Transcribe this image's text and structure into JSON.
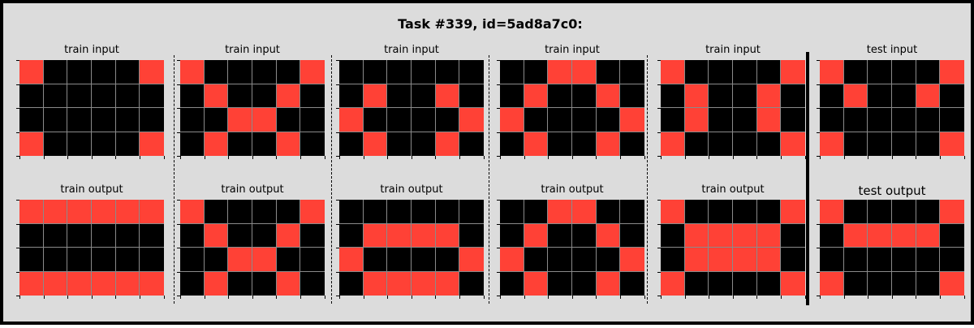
{
  "title": "Task #339, id=5ad8a7c0:",
  "colors": {
    "black": "#000000",
    "red": "#ff4136",
    "gridline": "#8a8a8a"
  },
  "panels": [
    {
      "label": "train input",
      "grid": [
        [
          2,
          0,
          0,
          0,
          0,
          2
        ],
        [
          0,
          0,
          0,
          0,
          0,
          0
        ],
        [
          0,
          0,
          0,
          0,
          0,
          0
        ],
        [
          2,
          0,
          0,
          0,
          0,
          2
        ]
      ]
    },
    {
      "label": "train input",
      "grid": [
        [
          2,
          0,
          0,
          0,
          0,
          2
        ],
        [
          0,
          2,
          0,
          0,
          2,
          0
        ],
        [
          0,
          0,
          2,
          2,
          0,
          0
        ],
        [
          0,
          2,
          0,
          0,
          2,
          0
        ]
      ]
    },
    {
      "label": "train input",
      "grid": [
        [
          0,
          0,
          0,
          0,
          0,
          0
        ],
        [
          0,
          2,
          0,
          0,
          2,
          0
        ],
        [
          2,
          0,
          0,
          0,
          0,
          2
        ],
        [
          0,
          2,
          0,
          0,
          2,
          0
        ]
      ]
    },
    {
      "label": "train input",
      "grid": [
        [
          0,
          0,
          2,
          2,
          0,
          0
        ],
        [
          0,
          2,
          0,
          0,
          2,
          0
        ],
        [
          2,
          0,
          0,
          0,
          0,
          2
        ],
        [
          0,
          2,
          0,
          0,
          2,
          0
        ]
      ]
    },
    {
      "label": "train input",
      "grid": [
        [
          2,
          0,
          0,
          0,
          0,
          2
        ],
        [
          0,
          2,
          0,
          0,
          2,
          0
        ],
        [
          0,
          2,
          0,
          0,
          2,
          0
        ],
        [
          2,
          0,
          0,
          0,
          0,
          2
        ]
      ]
    },
    {
      "label": "test input",
      "grid": [
        [
          2,
          0,
          0,
          0,
          0,
          2
        ],
        [
          0,
          2,
          0,
          0,
          2,
          0
        ],
        [
          0,
          0,
          0,
          0,
          0,
          0
        ],
        [
          2,
          0,
          0,
          0,
          0,
          2
        ]
      ]
    },
    {
      "label": "train output",
      "grid": [
        [
          2,
          2,
          2,
          2,
          2,
          2
        ],
        [
          0,
          0,
          0,
          0,
          0,
          0
        ],
        [
          0,
          0,
          0,
          0,
          0,
          0
        ],
        [
          2,
          2,
          2,
          2,
          2,
          2
        ]
      ]
    },
    {
      "label": "train output",
      "grid": [
        [
          2,
          0,
          0,
          0,
          0,
          2
        ],
        [
          0,
          2,
          0,
          0,
          2,
          0
        ],
        [
          0,
          0,
          2,
          2,
          0,
          0
        ],
        [
          0,
          2,
          0,
          0,
          2,
          0
        ]
      ]
    },
    {
      "label": "train output",
      "grid": [
        [
          0,
          0,
          0,
          0,
          0,
          0
        ],
        [
          0,
          2,
          2,
          2,
          2,
          0
        ],
        [
          2,
          0,
          0,
          0,
          0,
          2
        ],
        [
          0,
          2,
          2,
          2,
          2,
          0
        ]
      ]
    },
    {
      "label": "train output",
      "grid": [
        [
          0,
          0,
          2,
          2,
          0,
          0
        ],
        [
          0,
          2,
          0,
          0,
          2,
          0
        ],
        [
          2,
          0,
          0,
          0,
          0,
          2
        ],
        [
          0,
          2,
          0,
          0,
          2,
          0
        ]
      ]
    },
    {
      "label": "train output",
      "grid": [
        [
          2,
          0,
          0,
          0,
          0,
          2
        ],
        [
          0,
          2,
          2,
          2,
          2,
          0
        ],
        [
          0,
          2,
          2,
          2,
          2,
          0
        ],
        [
          2,
          0,
          0,
          0,
          0,
          2
        ]
      ]
    },
    {
      "label": "test output",
      "grid": [
        [
          2,
          0,
          0,
          0,
          0,
          2
        ],
        [
          0,
          2,
          2,
          2,
          2,
          0
        ],
        [
          0,
          0,
          0,
          0,
          0,
          0
        ],
        [
          2,
          0,
          0,
          0,
          0,
          2
        ]
      ]
    }
  ]
}
